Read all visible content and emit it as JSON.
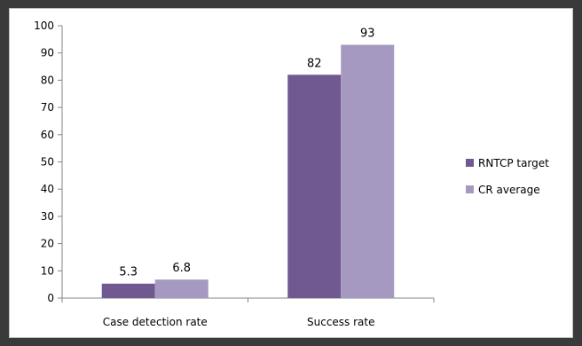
{
  "chart_data": {
    "type": "bar",
    "title": "",
    "xlabel": "",
    "ylabel": "",
    "categories": [
      "Case detection rate",
      "Success rate"
    ],
    "series": [
      {
        "name": "RNTCP target",
        "color": "#705891",
        "values": [
          5.3,
          82
        ]
      },
      {
        "name": "CR average",
        "color": "#a699c1",
        "values": [
          6.8,
          93
        ]
      }
    ],
    "ylim": [
      0,
      100
    ],
    "yticks": [
      0,
      10,
      20,
      30,
      40,
      50,
      60,
      70,
      80,
      90,
      100
    ],
    "grid": false,
    "legend_position": "right"
  }
}
